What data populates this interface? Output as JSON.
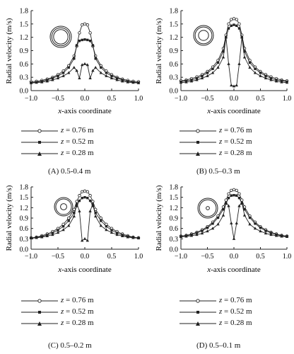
{
  "chart_data": [
    {
      "type": "line",
      "caption": "(A) 0.5-0.4 m",
      "xlabel_var": "x",
      "xlabel_rest": "-axis coordinate",
      "ylabel": "Radial velocity (m/s)",
      "xlim": [
        -1.0,
        1.0
      ],
      "ylim": [
        0,
        1.8
      ],
      "xticks": [
        "−1.0",
        "−0.5",
        "0.0",
        "0.5",
        "1.0"
      ],
      "yticks": [
        "0.0",
        "0.3",
        "0.6",
        "0.9",
        "1.2",
        "1.5",
        "1.8"
      ],
      "legend": {
        "var": "z",
        "entries": [
          "= 0.76 m",
          "= 0.52 m",
          "= 0.28 m"
        ]
      },
      "inset": {
        "outer_ratio": 1.0,
        "inner_ratio": 0.8
      },
      "x": [
        -1.0,
        -0.9,
        -0.8,
        -0.7,
        -0.6,
        -0.5,
        -0.4,
        -0.3,
        -0.2,
        -0.15,
        -0.1,
        -0.05,
        0.0,
        0.05,
        0.1,
        0.15,
        0.2,
        0.3,
        0.4,
        0.5,
        0.6,
        0.7,
        0.8,
        0.9,
        1.0
      ],
      "series": [
        {
          "marker": "circle",
          "values": [
            0.2,
            0.21,
            0.23,
            0.26,
            0.3,
            0.36,
            0.44,
            0.56,
            0.78,
            1.0,
            1.3,
            1.48,
            1.5,
            1.48,
            1.3,
            1.0,
            0.78,
            0.56,
            0.44,
            0.36,
            0.3,
            0.26,
            0.23,
            0.21,
            0.2
          ]
        },
        {
          "marker": "square",
          "values": [
            0.18,
            0.19,
            0.21,
            0.24,
            0.28,
            0.33,
            0.4,
            0.52,
            0.72,
            1.02,
            1.12,
            1.14,
            1.15,
            1.14,
            1.12,
            1.02,
            0.72,
            0.52,
            0.4,
            0.33,
            0.28,
            0.24,
            0.21,
            0.19,
            0.18
          ]
        },
        {
          "marker": "triangle",
          "values": [
            0.17,
            0.18,
            0.19,
            0.21,
            0.24,
            0.28,
            0.33,
            0.4,
            0.52,
            0.45,
            0.28,
            0.58,
            0.6,
            0.58,
            0.28,
            0.45,
            0.52,
            0.4,
            0.33,
            0.28,
            0.24,
            0.21,
            0.19,
            0.18,
            0.17
          ]
        }
      ]
    },
    {
      "type": "line",
      "caption": "(B) 0.5–0.3 m",
      "xlabel_var": "x",
      "xlabel_rest": "-axis coordinate",
      "ylabel": "Radial velocity (m/s)",
      "xlim": [
        -1.0,
        1.0
      ],
      "ylim": [
        0,
        1.8
      ],
      "xticks": [
        "−1.0",
        "−0.5",
        "0.0",
        "0.5",
        "1.0"
      ],
      "yticks": [
        "0.0",
        "0.3",
        "0.6",
        "0.9",
        "1.2",
        "1.5",
        "1.8"
      ],
      "legend": {
        "var": "z",
        "entries": [
          "= 0.76 m",
          "= 0.52 m",
          "= 0.28 m"
        ]
      },
      "inset": {
        "outer_ratio": 1.0,
        "inner_ratio": 0.6
      },
      "x": [
        -1.0,
        -0.9,
        -0.8,
        -0.7,
        -0.6,
        -0.5,
        -0.4,
        -0.3,
        -0.2,
        -0.15,
        -0.1,
        -0.05,
        0.0,
        0.05,
        0.1,
        0.15,
        0.2,
        0.3,
        0.4,
        0.5,
        0.6,
        0.7,
        0.8,
        0.9,
        1.0
      ],
      "series": [
        {
          "marker": "circle",
          "values": [
            0.22,
            0.24,
            0.27,
            0.31,
            0.36,
            0.43,
            0.53,
            0.68,
            0.95,
            1.25,
            1.5,
            1.6,
            1.62,
            1.6,
            1.5,
            1.25,
            0.95,
            0.68,
            0.53,
            0.43,
            0.36,
            0.31,
            0.27,
            0.24,
            0.22
          ]
        },
        {
          "marker": "square",
          "values": [
            0.2,
            0.22,
            0.24,
            0.28,
            0.33,
            0.4,
            0.49,
            0.63,
            0.88,
            1.2,
            1.4,
            1.46,
            1.48,
            1.46,
            1.4,
            1.2,
            0.88,
            0.63,
            0.49,
            0.4,
            0.33,
            0.28,
            0.24,
            0.22,
            0.2
          ]
        },
        {
          "marker": "triangle",
          "values": [
            0.18,
            0.19,
            0.21,
            0.24,
            0.28,
            0.33,
            0.4,
            0.52,
            0.75,
            1.2,
            0.6,
            0.12,
            0.1,
            0.12,
            0.6,
            1.2,
            0.75,
            0.52,
            0.4,
            0.33,
            0.28,
            0.24,
            0.21,
            0.19,
            0.18
          ]
        }
      ]
    },
    {
      "type": "line",
      "caption": "(C) 0.5–0.2 m",
      "xlabel_var": "x",
      "xlabel_rest": "-axis coordinate",
      "ylabel": "Radial velocity (m/s)",
      "xlim": [
        -1.0,
        1.0
      ],
      "ylim": [
        0,
        1.8
      ],
      "xticks": [
        "−1.0",
        "−0.5",
        "0.0",
        "0.5",
        "1.0"
      ],
      "yticks": [
        "0.0",
        "0.3",
        "0.6",
        "0.9",
        "1.2",
        "1.5",
        "1.8"
      ],
      "legend": {
        "var": "z",
        "entries": [
          "= 0.76 m",
          "= 0.52 m",
          "= 0.28 m"
        ]
      },
      "inset": {
        "outer_ratio": 1.0,
        "inner_ratio": 0.4
      },
      "x": [
        -1.0,
        -0.9,
        -0.8,
        -0.7,
        -0.6,
        -0.5,
        -0.4,
        -0.3,
        -0.2,
        -0.15,
        -0.1,
        -0.05,
        0.0,
        0.05,
        0.1,
        0.15,
        0.2,
        0.3,
        0.4,
        0.5,
        0.6,
        0.7,
        0.8,
        0.9,
        1.0
      ],
      "series": [
        {
          "marker": "circle",
          "values": [
            0.33,
            0.35,
            0.39,
            0.44,
            0.51,
            0.6,
            0.72,
            0.9,
            1.15,
            1.38,
            1.55,
            1.66,
            1.68,
            1.66,
            1.55,
            1.38,
            1.15,
            0.9,
            0.72,
            0.6,
            0.51,
            0.44,
            0.39,
            0.35,
            0.33
          ]
        },
        {
          "marker": "square",
          "values": [
            0.32,
            0.34,
            0.37,
            0.41,
            0.47,
            0.55,
            0.66,
            0.82,
            1.05,
            1.25,
            1.4,
            1.48,
            1.5,
            1.48,
            1.4,
            1.25,
            1.05,
            0.82,
            0.66,
            0.55,
            0.47,
            0.41,
            0.37,
            0.34,
            0.32
          ]
        },
        {
          "marker": "triangle",
          "values": [
            0.32,
            0.33,
            0.35,
            0.38,
            0.42,
            0.48,
            0.56,
            0.68,
            0.95,
            1.32,
            1.1,
            0.25,
            0.3,
            0.25,
            1.1,
            1.32,
            0.95,
            0.68,
            0.56,
            0.48,
            0.42,
            0.38,
            0.35,
            0.33,
            0.32
          ]
        }
      ]
    },
    {
      "type": "line",
      "caption": "(D) 0.5–0.1 m",
      "xlabel_var": "x",
      "xlabel_rest": "-axis coordinate",
      "ylabel": "Radial velocity (m/s)",
      "xlim": [
        -1.0,
        1.0
      ],
      "ylim": [
        0,
        1.8
      ],
      "xticks": [
        "−1.0",
        "−0.5",
        "0.0",
        "0.5",
        "1.0"
      ],
      "yticks": [
        "0.0",
        "0.3",
        "0.6",
        "0.9",
        "1.2",
        "1.5",
        "1.8"
      ],
      "legend": {
        "var": "z",
        "entries": [
          "= 0.76 m",
          "= 0.52 m",
          "= 0.28 m"
        ]
      },
      "inset": {
        "outer_ratio": 1.0,
        "inner_ratio": 0.2
      },
      "x": [
        -1.0,
        -0.9,
        -0.8,
        -0.7,
        -0.6,
        -0.5,
        -0.4,
        -0.3,
        -0.2,
        -0.15,
        -0.1,
        -0.05,
        0.0,
        0.05,
        0.1,
        0.15,
        0.2,
        0.3,
        0.4,
        0.5,
        0.6,
        0.7,
        0.8,
        0.9,
        1.0
      ],
      "series": [
        {
          "marker": "circle",
          "values": [
            0.38,
            0.4,
            0.44,
            0.49,
            0.56,
            0.65,
            0.78,
            0.96,
            1.22,
            1.42,
            1.6,
            1.7,
            1.72,
            1.7,
            1.6,
            1.42,
            1.22,
            0.96,
            0.78,
            0.65,
            0.56,
            0.49,
            0.44,
            0.4,
            0.38
          ]
        },
        {
          "marker": "square",
          "values": [
            0.37,
            0.39,
            0.42,
            0.47,
            0.53,
            0.62,
            0.74,
            0.91,
            1.15,
            1.32,
            1.48,
            1.55,
            1.56,
            1.55,
            1.48,
            1.32,
            1.15,
            0.91,
            0.74,
            0.62,
            0.53,
            0.47,
            0.42,
            0.39,
            0.37
          ]
        },
        {
          "marker": "triangle",
          "values": [
            0.36,
            0.37,
            0.39,
            0.42,
            0.46,
            0.52,
            0.6,
            0.72,
            0.98,
            1.35,
            1.25,
            0.75,
            0.3,
            0.75,
            1.25,
            1.35,
            0.98,
            0.72,
            0.6,
            0.52,
            0.46,
            0.42,
            0.39,
            0.37,
            0.36
          ]
        }
      ]
    }
  ]
}
